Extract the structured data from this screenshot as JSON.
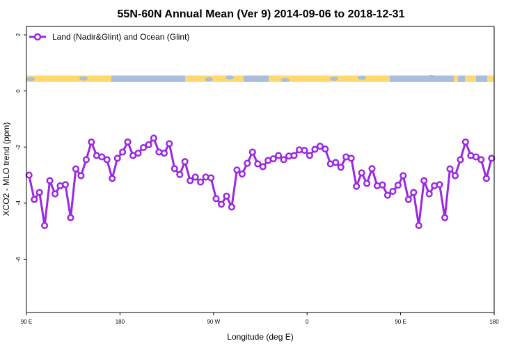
{
  "chart_data": {
    "type": "line",
    "title": "55N-60N Annual Mean (Ver 9)   2014-09-06 to 2018-12-31",
    "xlabel": "Longitude (deg E)",
    "ylabel": "XCO2 - MLO trend (ppm)",
    "xlim": [
      90,
      450
    ],
    "ylim": [
      -7.9,
      2.3
    ],
    "x_ticks": [
      {
        "value": 90,
        "label": "90 E"
      },
      {
        "value": 162,
        "label": "180"
      },
      {
        "value": 234,
        "label": "90 W"
      },
      {
        "value": 306,
        "label": "0"
      },
      {
        "value": 378,
        "label": "90 E"
      },
      {
        "value": 450,
        "label": "180"
      }
    ],
    "y_ticks": [
      {
        "value": 2,
        "label": "2"
      },
      {
        "value": 0,
        "label": "0"
      },
      {
        "value": -2,
        "label": "-2"
      },
      {
        "value": -4,
        "label": "-4"
      },
      {
        "value": -6,
        "label": "-6"
      }
    ],
    "legend": {
      "label": "Land (Nadir&Glint) and Ocean (Glint)",
      "position": "top-left"
    },
    "series": [
      {
        "name": "Land (Nadir&Glint) and Ocean (Glint)",
        "color": "#9a28e0",
        "x": [
          92,
          96,
          100,
          104,
          108,
          112,
          116,
          120,
          124,
          128,
          132,
          136,
          140,
          144,
          148,
          152,
          156,
          160,
          164,
          168,
          172,
          176,
          180,
          184,
          188,
          192,
          196,
          200,
          204,
          208,
          212,
          216,
          220,
          224,
          228,
          232,
          236,
          240,
          244,
          248,
          252,
          256,
          260,
          264,
          268,
          272,
          276,
          280,
          284,
          288,
          292,
          296,
          300,
          304,
          308,
          312,
          316,
          320,
          324,
          328,
          332,
          336,
          340,
          344,
          348,
          352,
          356,
          360,
          364,
          368,
          372,
          376,
          380,
          384,
          388,
          392,
          396,
          400,
          404,
          408,
          412,
          416,
          420,
          424,
          428,
          432,
          436,
          440,
          444,
          448
        ],
        "y": [
          -3.0,
          -3.87,
          -3.62,
          -4.8,
          -3.2,
          -3.67,
          -3.38,
          -3.34,
          -4.52,
          -2.78,
          -3.02,
          -2.45,
          -1.82,
          -2.3,
          -2.35,
          -2.45,
          -3.12,
          -2.4,
          -2.18,
          -1.82,
          -2.3,
          -2.22,
          -2.02,
          -1.92,
          -1.68,
          -2.18,
          -2.22,
          -1.88,
          -2.77,
          -2.98,
          -2.52,
          -3.2,
          -3.07,
          -3.25,
          -3.07,
          -3.1,
          -3.84,
          -4.04,
          -3.75,
          -4.14,
          -2.82,
          -2.96,
          -2.58,
          -2.18,
          -2.6,
          -2.7,
          -2.48,
          -2.42,
          -2.3,
          -2.45,
          -2.32,
          -2.3,
          -2.1,
          -2.12,
          -2.3,
          -2.08,
          -1.97,
          -2.07,
          -2.6,
          -2.55,
          -2.72,
          -2.35,
          -2.4,
          -3.4,
          -2.92,
          -3.3,
          -2.77,
          -3.38,
          -3.35,
          -3.72,
          -3.58,
          -3.36,
          -3.02,
          -3.87,
          -3.62,
          -4.8,
          -3.2,
          -3.67,
          -3.38,
          -3.34,
          -4.52,
          -2.78,
          -3.02,
          -2.45,
          -1.82,
          -2.3,
          -2.35,
          -2.45,
          -3.12,
          -2.4
        ]
      }
    ],
    "land_mask": {
      "y_range": [
        0.32,
        0.55
      ],
      "land_color": "#ffd970",
      "ocean_color": "#a9bedb"
    }
  }
}
